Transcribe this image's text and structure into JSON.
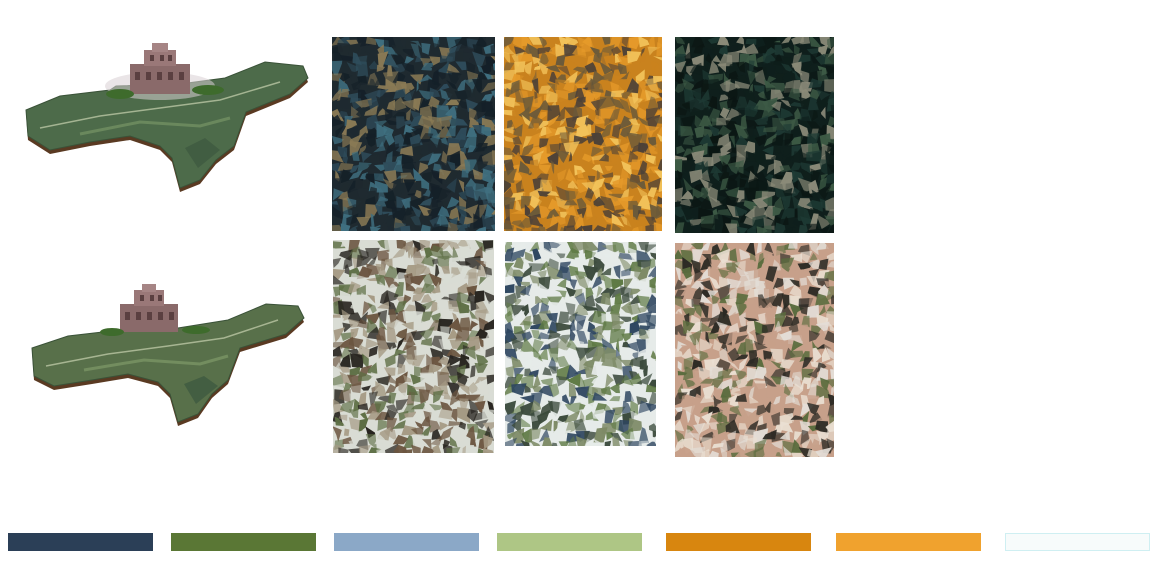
{
  "maps": [
    {
      "id": "map-top"
    },
    {
      "id": "map-bottom"
    }
  ],
  "photos": [
    {
      "colors": [
        "#1f2a30",
        "#2f4d5c",
        "#3f6f80",
        "#8a7a55",
        "#142028"
      ]
    },
    {
      "colors": [
        "#c9821e",
        "#e59a2a",
        "#6b5a3a",
        "#4a4038",
        "#f2c25a"
      ]
    },
    {
      "colors": [
        "#0f1f1c",
        "#1e3a34",
        "#3d5a45",
        "#8a8a78",
        "#0b1613"
      ]
    },
    {
      "colors": [
        "#d9dcd4",
        "#5d6e44",
        "#6b5540",
        "#27241f",
        "#a59a84"
      ]
    },
    {
      "colors": [
        "#e6ebe9",
        "#5f7a45",
        "#7d8a66",
        "#3b4a3c",
        "#2e4660"
      ]
    },
    {
      "colors": [
        "#c7a08a",
        "#e3ddd6",
        "#5a6c3e",
        "#2c2a24",
        "#eadfd2"
      ]
    }
  ],
  "palette": [
    {
      "color": "#2b3f57"
    },
    {
      "color": "#5a7735"
    },
    {
      "color": "#8ba8c7"
    },
    {
      "color": "#aec685"
    },
    {
      "color": "#d8860f"
    },
    {
      "color": "#f0a22e"
    },
    {
      "color": "#f7fbfb"
    }
  ]
}
